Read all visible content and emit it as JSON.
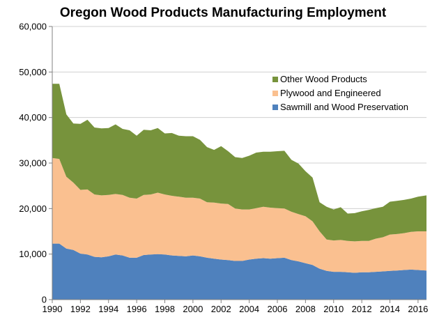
{
  "chart_data": {
    "type": "area",
    "stacked": true,
    "title": "Oregon Wood Products Manufacturing Employment",
    "xlabel": "",
    "ylabel": "",
    "xlim": [
      1990,
      2016.6
    ],
    "ylim": [
      0,
      60000
    ],
    "grid": true,
    "legend_position": "right, upper-middle",
    "x_ticks": [
      1990,
      1992,
      1994,
      1996,
      1998,
      2000,
      2002,
      2004,
      2006,
      2008,
      2010,
      2012,
      2014,
      2016
    ],
    "y_ticks": [
      0,
      10000,
      20000,
      30000,
      40000,
      50000,
      60000
    ],
    "y_tick_labels": [
      "0",
      "10,000",
      "20,000",
      "30,000",
      "40,000",
      "50,000",
      "60,000"
    ],
    "x": [
      1990,
      1990.5,
      1991,
      1991.5,
      1992,
      1992.5,
      1993,
      1993.5,
      1994,
      1994.5,
      1995,
      1995.5,
      1996,
      1996.5,
      1997,
      1997.5,
      1998,
      1998.5,
      1999,
      1999.5,
      2000,
      2000.5,
      2001,
      2001.5,
      2002,
      2002.5,
      2003,
      2003.5,
      2004,
      2004.5,
      2005,
      2005.5,
      2006,
      2006.5,
      2007,
      2007.5,
      2008,
      2008.5,
      2009,
      2009.5,
      2010,
      2010.5,
      2011,
      2011.5,
      2012,
      2012.5,
      2013,
      2013.5,
      2014,
      2014.5,
      2015,
      2015.5,
      2016,
      2016.6
    ],
    "series": [
      {
        "name": "Sawmill and Wood Preservation",
        "color": "#4f81bd",
        "values": [
          12300,
          12300,
          11200,
          10900,
          10100,
          9900,
          9400,
          9300,
          9500,
          9900,
          9700,
          9200,
          9200,
          9800,
          9900,
          10000,
          9900,
          9700,
          9600,
          9500,
          9700,
          9500,
          9200,
          9000,
          8800,
          8700,
          8500,
          8500,
          8800,
          9000,
          9100,
          9000,
          9100,
          9200,
          8700,
          8400,
          8000,
          7600,
          6800,
          6300,
          6100,
          6100,
          6000,
          5900,
          6000,
          6000,
          6100,
          6200,
          6300,
          6400,
          6500,
          6600,
          6500,
          6400
        ]
      },
      {
        "name": "Plywood and Engineered",
        "color": "#fac090",
        "values": [
          18800,
          18600,
          15800,
          14800,
          14000,
          14300,
          13700,
          13600,
          13500,
          13300,
          13300,
          13200,
          13000,
          13200,
          13200,
          13500,
          13200,
          13100,
          13000,
          12900,
          12700,
          12700,
          12200,
          12300,
          12300,
          12300,
          11500,
          11300,
          11000,
          11100,
          11300,
          11200,
          11000,
          10800,
          10600,
          10400,
          10300,
          9600,
          8200,
          6900,
          6900,
          7000,
          6900,
          6900,
          6900,
          6900,
          7300,
          7500,
          8000,
          8000,
          8100,
          8300,
          8500,
          8600
        ]
      },
      {
        "name": "Other Wood Products",
        "color": "#77933c",
        "values": [
          16300,
          16500,
          13700,
          13000,
          14500,
          15300,
          14700,
          14700,
          14700,
          15300,
          14500,
          14800,
          13800,
          14300,
          14100,
          14200,
          13400,
          13800,
          13400,
          13500,
          13500,
          12900,
          12100,
          11600,
          12600,
          11600,
          11300,
          11300,
          11800,
          12200,
          12100,
          12300,
          12500,
          12700,
          11400,
          11100,
          9900,
          9600,
          6400,
          7200,
          6800,
          7200,
          6000,
          6200,
          6500,
          6800,
          6700,
          6700,
          7200,
          7300,
          7300,
          7300,
          7600,
          7900
        ]
      }
    ]
  }
}
